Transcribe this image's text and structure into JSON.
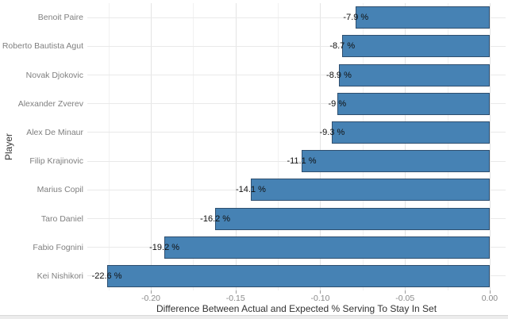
{
  "chart_data": {
    "type": "bar",
    "orientation": "horizontal",
    "title": "",
    "xlabel": "Difference Between Actual and Expected % Serving To Stay In Set",
    "ylabel": "Player",
    "categories": [
      "Benoit Paire",
      "Roberto Bautista Agut",
      "Novak Djokovic",
      "Alexander Zverev",
      "Alex De Minaur",
      "Filip Krajinovic",
      "Marius Copil",
      "Taro Daniel",
      "Fabio Fognini",
      "Kei Nishikori"
    ],
    "values": [
      -0.079,
      -0.087,
      -0.089,
      -0.09,
      -0.093,
      -0.111,
      -0.141,
      -0.162,
      -0.192,
      -0.226
    ],
    "bar_labels": [
      "-7.9 %",
      "-8.7 %",
      "-8.9 %",
      "-9 %",
      "-9.3 %",
      "-11.1 %",
      "-14.1 %",
      "-16.2 %",
      "-19.2 %",
      "-22.6 %"
    ],
    "xlim": [
      -0.2375,
      0.0094
    ],
    "xticks": [
      -0.2,
      -0.15,
      -0.1,
      -0.05,
      0.0
    ],
    "xtick_labels": [
      "-0.20",
      "-0.15",
      "-0.10",
      "-0.05",
      "0.00"
    ],
    "xticks_minor": [
      -0.225,
      -0.175,
      -0.125,
      -0.075,
      -0.025
    ],
    "grid": true,
    "legend": false,
    "colors": {
      "bar_fill": "#4682b4",
      "bar_border": "#2f4f6f",
      "grid_major": "#e4e4e4",
      "grid_minor": "#f1f1f1",
      "axis_text": "#8a8a8a",
      "axis_title": "#333333",
      "label_text": "#111111"
    }
  }
}
